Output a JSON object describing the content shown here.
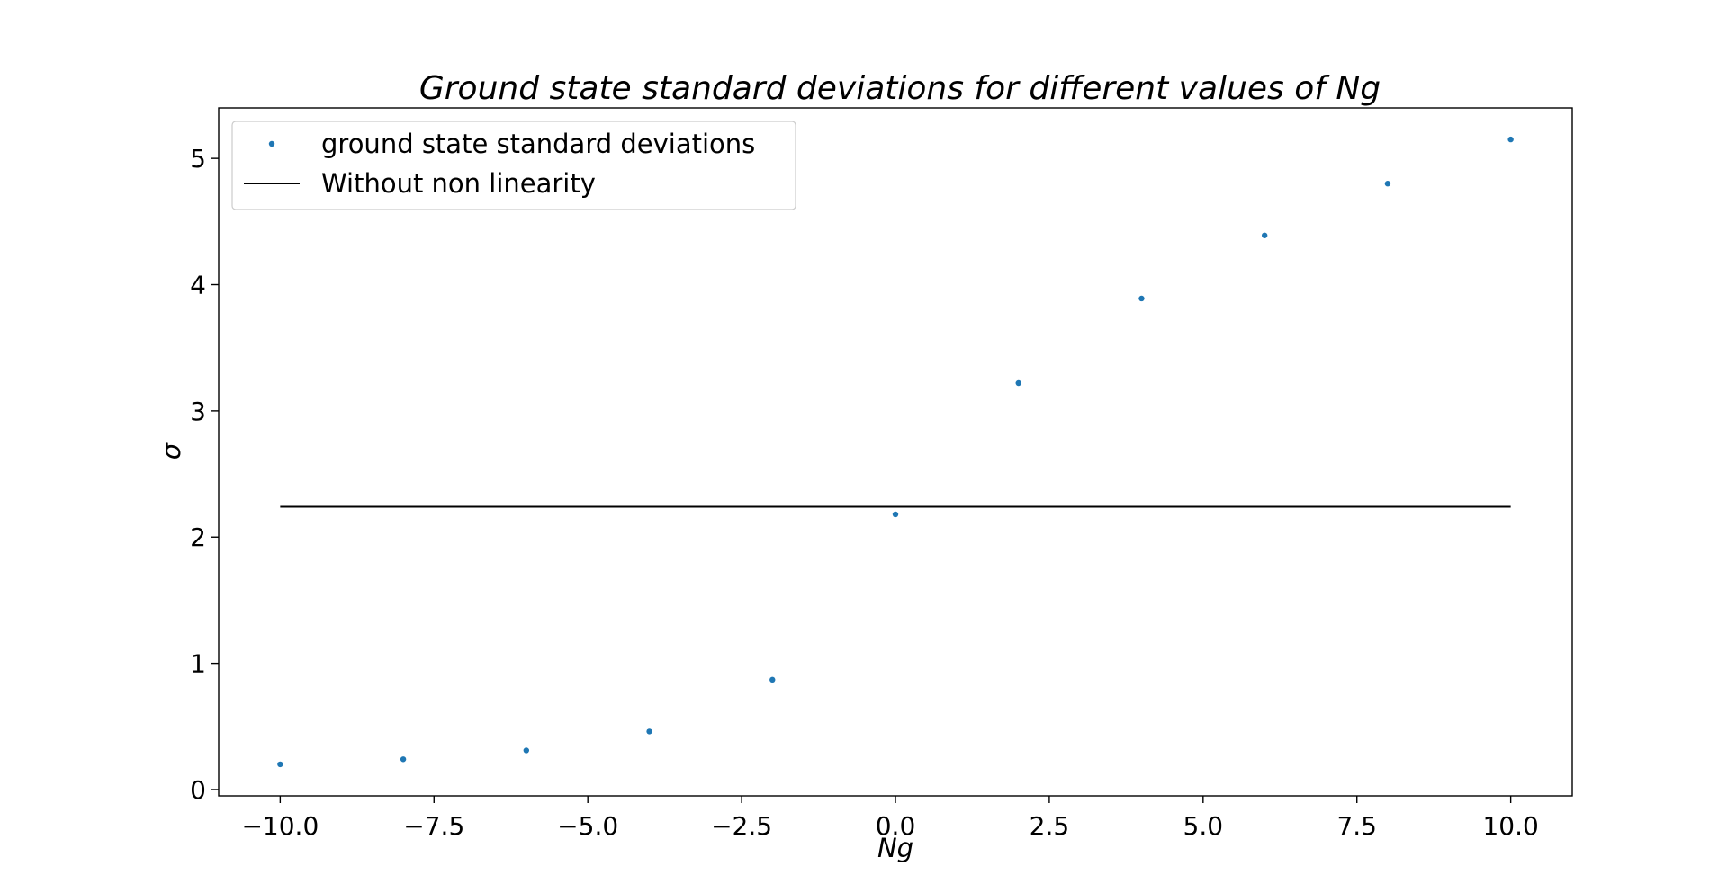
{
  "chart_data": {
    "type": "scatter",
    "title": "Ground state standard deviations for different values of Ng",
    "xlabel": "Ng",
    "ylabel": "σ",
    "xlim": [
      -11.0,
      11.0
    ],
    "ylim": [
      -0.05,
      5.4
    ],
    "xticks": [
      -10.0,
      -7.5,
      -5.0,
      -2.5,
      0.0,
      2.5,
      5.0,
      7.5,
      10.0
    ],
    "xtick_labels": [
      "−10.0",
      "−7.5",
      "−5.0",
      "−2.5",
      "0.0",
      "2.5",
      "5.0",
      "7.5",
      "10.0"
    ],
    "yticks": [
      0,
      1,
      2,
      3,
      4,
      5
    ],
    "ytick_labels": [
      "0",
      "1",
      "2",
      "3",
      "4",
      "5"
    ],
    "grid": false,
    "legend_position": "upper-left",
    "series": [
      {
        "name": "ground state standard deviations",
        "kind": "scatter",
        "color": "#1f77b4",
        "x": [
          -10,
          -8,
          -6,
          -4,
          -2,
          0,
          2,
          4,
          6,
          8,
          10
        ],
        "y": [
          0.2,
          0.24,
          0.31,
          0.46,
          0.87,
          2.18,
          3.22,
          3.89,
          4.39,
          4.8,
          5.15
        ]
      },
      {
        "name": "Without non linearity",
        "kind": "line",
        "color": "#000000",
        "x": [
          -10,
          10
        ],
        "y": [
          2.24,
          2.24
        ]
      }
    ]
  }
}
